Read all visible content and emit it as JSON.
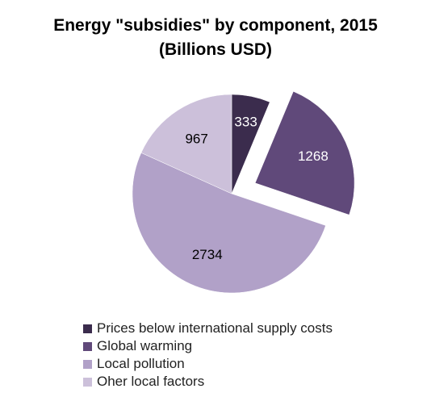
{
  "chart_data": {
    "type": "pie",
    "title": "Energy \"subsidies\" by component, 2015",
    "subtitle": "(Billions USD)",
    "categories": [
      "Prices below international supply costs",
      "Global warming",
      "Local pollution",
      "Oher local factors"
    ],
    "values": [
      333,
      1268,
      2734,
      967
    ],
    "colors": [
      "#3b2c4d",
      "#60497a",
      "#b1a1c8",
      "#ccc0da"
    ],
    "label_colors": [
      "#ffffff",
      "#ffffff",
      "#000000",
      "#000000"
    ],
    "exploded": [
      false,
      true,
      false,
      false
    ],
    "data_labels": [
      "333",
      "1268",
      "2734",
      "967"
    ],
    "legend_position": "bottom",
    "start_angle": "12 o'clock, clockwise"
  }
}
